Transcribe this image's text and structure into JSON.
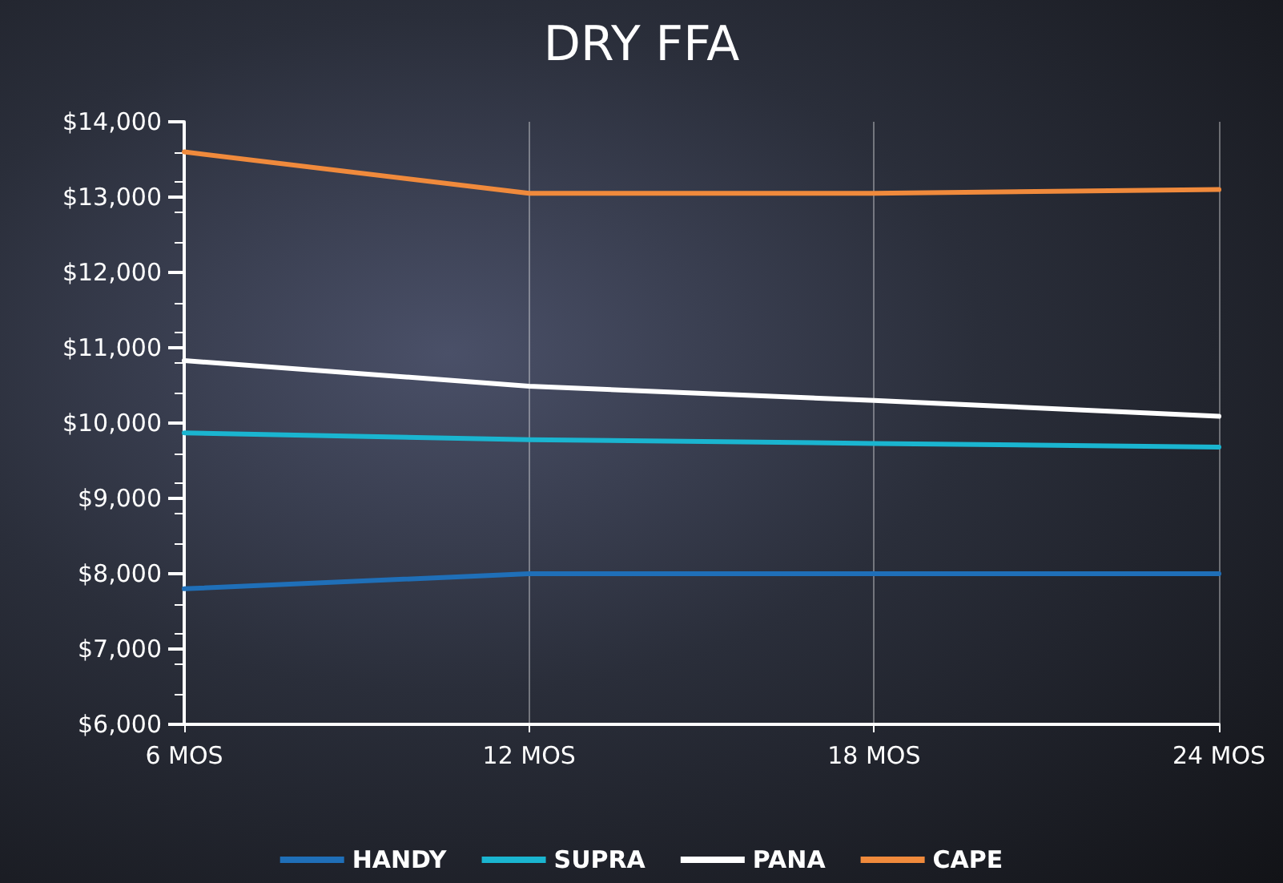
{
  "chart_data": {
    "type": "line",
    "title": "DRY FFA",
    "categories": [
      "6 MOS",
      "12 MOS",
      "18 MOS",
      "24 MOS"
    ],
    "series": [
      {
        "name": "HANDY",
        "color": "#1f6fb8",
        "values": [
          7800,
          8000,
          8000,
          8000
        ]
      },
      {
        "name": "SUPRA",
        "color": "#1ab5d0",
        "values": [
          9870,
          9780,
          9730,
          9680
        ]
      },
      {
        "name": "PANA",
        "color": "#ffffff",
        "values": [
          10830,
          10490,
          10300,
          10090
        ]
      },
      {
        "name": "CAPE",
        "color": "#f08a3c",
        "values": [
          13600,
          13050,
          13050,
          13100
        ]
      }
    ],
    "ylim": [
      6000,
      14000
    ],
    "yticks": [
      {
        "value": 6000,
        "label": "$6,000"
      },
      {
        "value": 7000,
        "label": "$7,000"
      },
      {
        "value": 8000,
        "label": "$8,000"
      },
      {
        "value": 9000,
        "label": "$9,000"
      },
      {
        "value": 10000,
        "label": "$10,000"
      },
      {
        "value": 11000,
        "label": "$11,000"
      },
      {
        "value": 12000,
        "label": "$12,000"
      },
      {
        "value": 13000,
        "label": "$13,000"
      },
      {
        "value": 14000,
        "label": "$14,000"
      }
    ],
    "grid": "x",
    "legend": "bottom",
    "marker": "none",
    "line_style": "solid"
  }
}
